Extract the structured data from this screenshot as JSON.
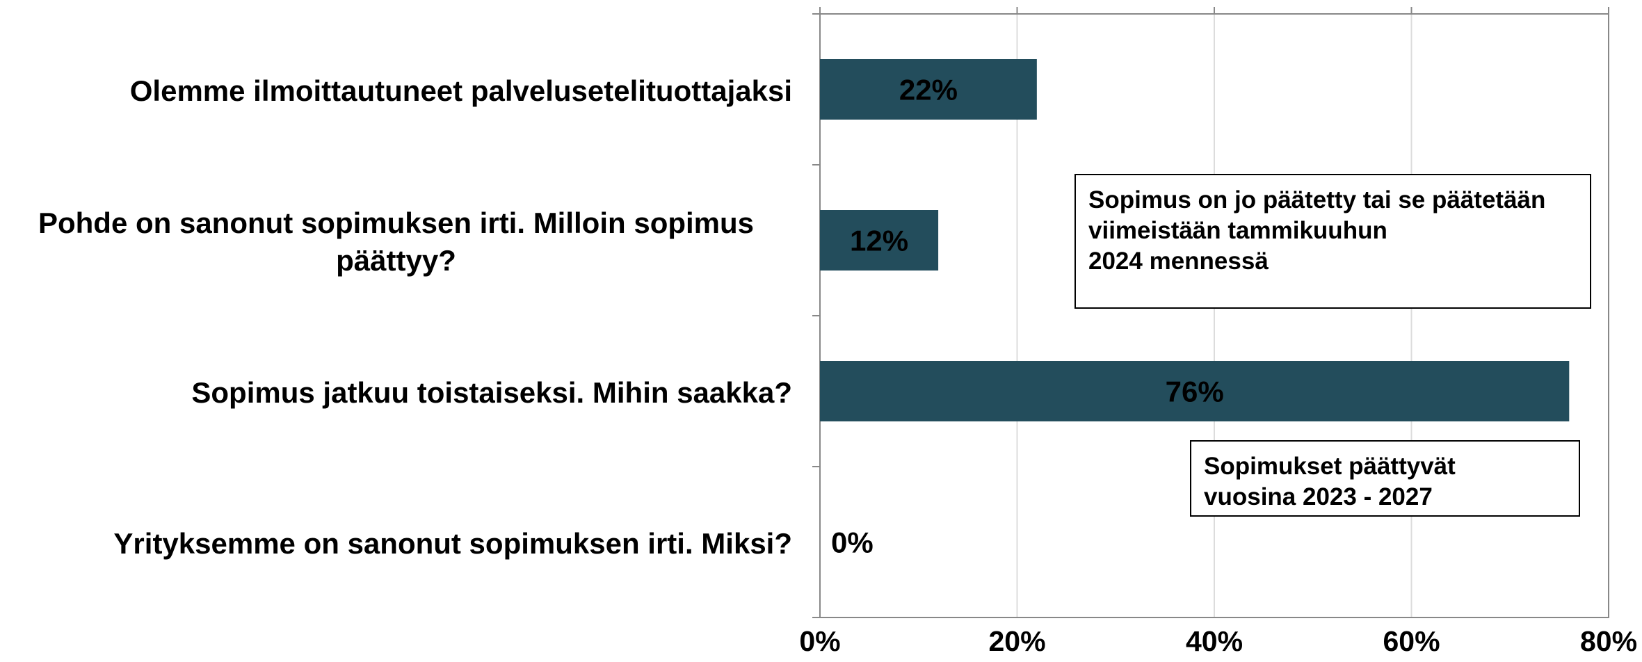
{
  "chart_data": {
    "type": "barh",
    "categories": [
      "Olemme ilmoittautuneet palvelusetelituottajaksi",
      "Pohde on sanonut sopimuksen irti. Milloin sopimus päättyy?",
      "Sopimus jatkuu toistaiseksi. Mihin saakka?",
      "Yrityksemme on sanonut sopimuksen irti. Miksi?"
    ],
    "values": [
      22,
      12,
      76,
      0
    ],
    "value_labels": [
      "22%",
      "12%",
      "76%",
      "0%"
    ],
    "color": "#234d5c",
    "xlim": [
      0,
      80
    ],
    "xticks": [
      {
        "value": 0,
        "label": "0%"
      },
      {
        "value": 20,
        "label": "20%"
      },
      {
        "value": 40,
        "label": "40%"
      },
      {
        "value": 60,
        "label": "60%"
      },
      {
        "value": 80,
        "label": "80%"
      }
    ],
    "grid": true,
    "annotations": [
      {
        "lines": [
          "Sopimus on jo päätetty tai se päätetään",
          "viimeistään tammikuuhun",
          "2024 mennessä"
        ]
      },
      {
        "lines": [
          "Sopimukset päättyvät",
          "vuosina 2023 - 2027"
        ]
      }
    ]
  }
}
